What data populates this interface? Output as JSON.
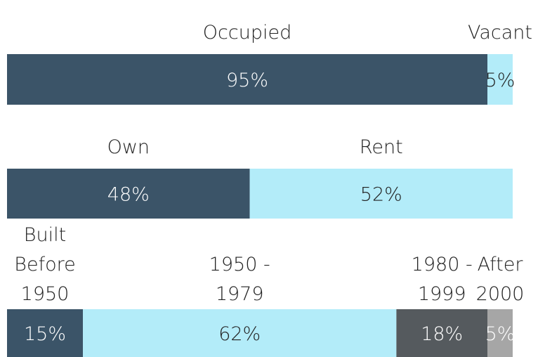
{
  "chart_data": [
    {
      "type": "stacked-bar",
      "series": [
        {
          "name": "Occupied",
          "color": "#3b5468",
          "values": [
            95
          ],
          "value_labels": [
            "95%"
          ]
        },
        {
          "name": "Vacant",
          "color": "#b3ecf9",
          "values": [
            5
          ],
          "value_labels": [
            "5%"
          ]
        }
      ]
    },
    {
      "type": "stacked-bar",
      "series": [
        {
          "name": "Own",
          "color": "#3b5468",
          "values": [
            48
          ],
          "value_labels": [
            "48%"
          ]
        },
        {
          "name": "Rent",
          "color": "#b3ecf9",
          "values": [
            52
          ],
          "value_labels": [
            "52%"
          ]
        }
      ]
    },
    {
      "type": "stacked-bar",
      "series": [
        {
          "name": "Built\nBefore\n1950",
          "color": "#3b5468",
          "values": [
            15
          ],
          "value_labels": [
            "15%"
          ]
        },
        {
          "name": "1950 -\n1979",
          "color": "#b3ecf9",
          "values": [
            62
          ],
          "value_labels": [
            "62%"
          ]
        },
        {
          "name": "1980 -\n1999",
          "color": "#555a5e",
          "values": [
            18
          ],
          "value_labels": [
            "18%"
          ]
        },
        {
          "name": "After\n2000",
          "color": "#a6a6a6",
          "values": [
            5
          ],
          "value_labels": [
            "5%"
          ]
        }
      ]
    }
  ]
}
